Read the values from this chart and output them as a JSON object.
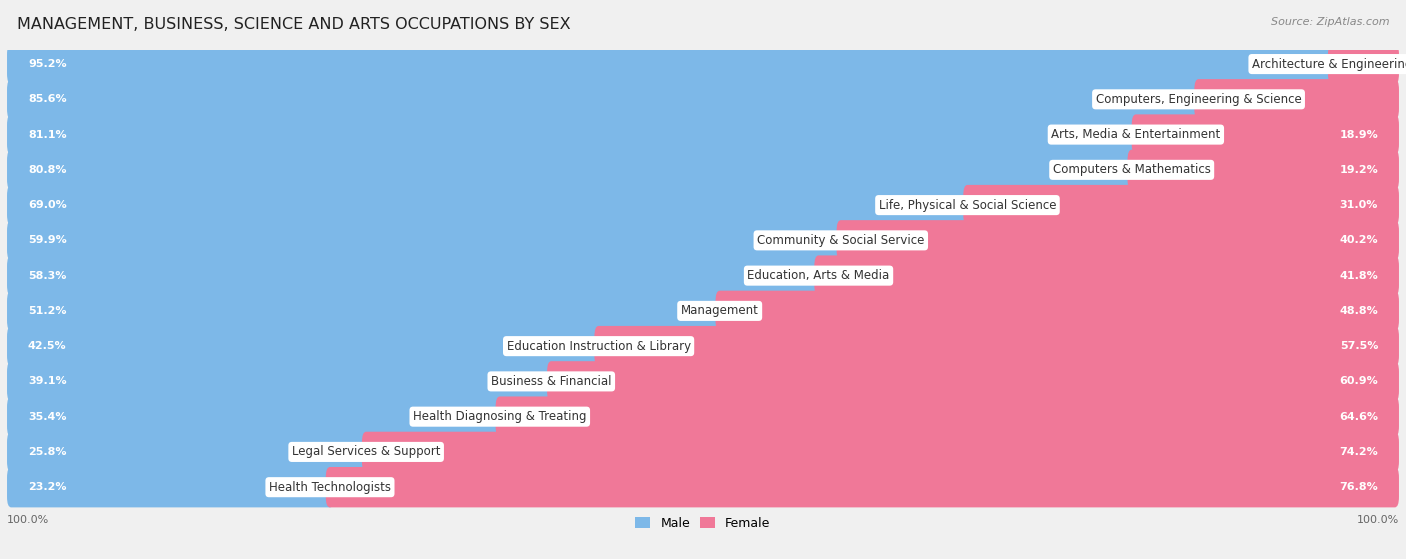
{
  "title": "MANAGEMENT, BUSINESS, SCIENCE AND ARTS OCCUPATIONS BY SEX",
  "source": "Source: ZipAtlas.com",
  "categories": [
    "Architecture & Engineering",
    "Computers, Engineering & Science",
    "Arts, Media & Entertainment",
    "Computers & Mathematics",
    "Life, Physical & Social Science",
    "Community & Social Service",
    "Education, Arts & Media",
    "Management",
    "Education Instruction & Library",
    "Business & Financial",
    "Health Diagnosing & Treating",
    "Legal Services & Support",
    "Health Technologists"
  ],
  "male_pct": [
    95.2,
    85.6,
    81.1,
    80.8,
    69.0,
    59.9,
    58.3,
    51.2,
    42.5,
    39.1,
    35.4,
    25.8,
    23.2
  ],
  "female_pct": [
    4.8,
    14.4,
    18.9,
    19.2,
    31.0,
    40.2,
    41.8,
    48.8,
    57.5,
    60.9,
    64.6,
    74.2,
    76.8
  ],
  "male_color": "#7db8e8",
  "female_color": "#f07898",
  "bg_color": "#f0f0f0",
  "row_bg_color": "#ffffff",
  "row_alt_bg": "#f8f8f8",
  "title_fontsize": 11.5,
  "label_fontsize": 8.5,
  "pct_fontsize": 8.0,
  "legend_fontsize": 9,
  "source_fontsize": 8
}
